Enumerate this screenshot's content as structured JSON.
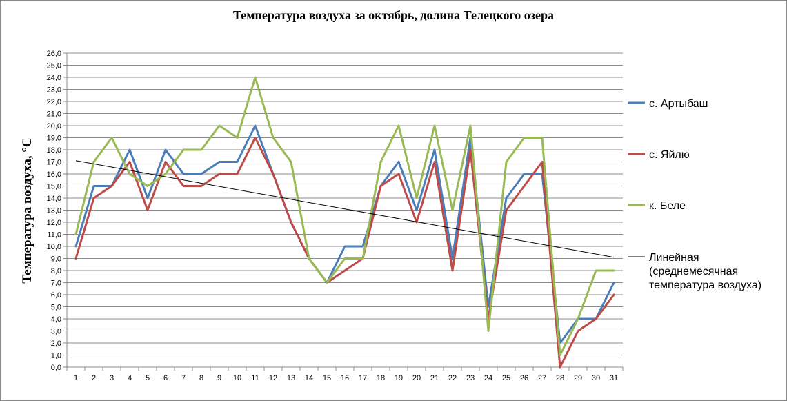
{
  "chart_data": {
    "type": "line",
    "title": "Температура  воздуха за октябрь, долина Телецкого озера",
    "ylabel": "Температура  воздуха, °C",
    "xlabel": "",
    "x": [
      1,
      2,
      3,
      4,
      5,
      6,
      7,
      8,
      9,
      10,
      11,
      12,
      13,
      14,
      15,
      16,
      17,
      18,
      19,
      20,
      21,
      22,
      23,
      24,
      25,
      26,
      27,
      28,
      29,
      30,
      31
    ],
    "ylim": [
      0,
      26
    ],
    "ytick_step": 1,
    "ytick_labels": [
      "0,0",
      "1,0",
      "2,0",
      "3,0",
      "4,0",
      "5,0",
      "6,0",
      "7,0",
      "8,0",
      "9,0",
      "10,0",
      "11,0",
      "12,0",
      "13,0",
      "14,0",
      "15,0",
      "16,0",
      "17,0",
      "18,0",
      "19,0",
      "20,0",
      "21,0",
      "22,0",
      "23,0",
      "24,0",
      "25,0",
      "26,0"
    ],
    "grid": true,
    "legend_position": "right",
    "series": [
      {
        "name": "с. Артыбаш",
        "color": "#4a7ebb",
        "values": [
          10,
          15,
          15,
          18,
          14,
          18,
          16,
          16,
          17,
          17,
          20,
          16,
          12,
          9,
          7,
          10,
          10,
          15,
          17,
          13,
          18,
          9,
          19,
          5,
          14,
          16,
          16,
          2,
          4,
          4,
          7
        ]
      },
      {
        "name": "с. Яйлю",
        "color": "#be4b48",
        "values": [
          9,
          14,
          15,
          17,
          13,
          17,
          15,
          15,
          16,
          16,
          19,
          16,
          12,
          9,
          7,
          8,
          9,
          15,
          16,
          12,
          17,
          8,
          18,
          4,
          13,
          15,
          17,
          0,
          3,
          4,
          6
        ]
      },
      {
        "name": "к. Беле",
        "color": "#98b954",
        "values": [
          11,
          17,
          19,
          16,
          15,
          16,
          18,
          18,
          20,
          19,
          24,
          19,
          17,
          9,
          7,
          9,
          9,
          17,
          20,
          14,
          20,
          13,
          20,
          3,
          17,
          19,
          19,
          1,
          4,
          8,
          8
        ]
      },
      {
        "name": "Линейная (среднемесячная температура воздуха)",
        "legend_lines": [
          "Линейная",
          "(среднемесячная",
          "температура воздуха)"
        ],
        "color": "#000000",
        "type": "trendline",
        "start": [
          1,
          17.1
        ],
        "end": [
          31,
          9.1
        ]
      }
    ]
  }
}
